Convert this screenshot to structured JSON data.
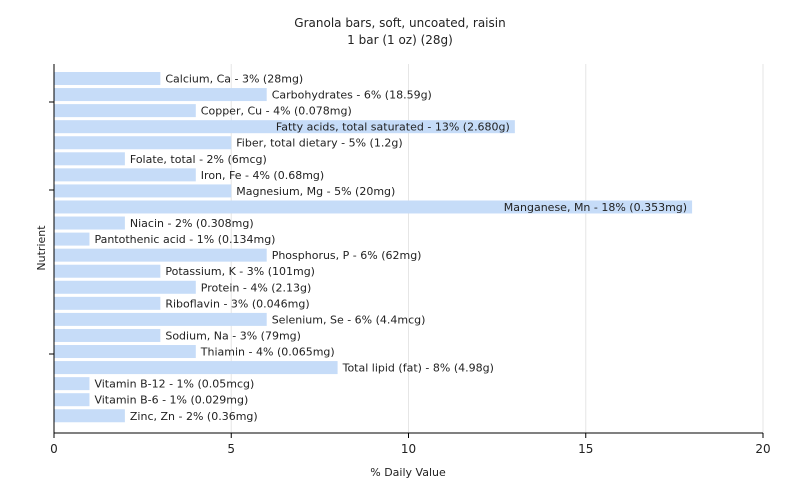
{
  "chart_data": {
    "type": "bar",
    "orientation": "horizontal",
    "title": "Granola bars, soft, uncoated, raisin",
    "subtitle": "1 bar (1 oz) (28g)",
    "xlabel": "% Daily Value",
    "ylabel": "Nutrient",
    "xlim": [
      0,
      20
    ],
    "xticks": [
      0,
      5,
      10,
      15,
      20
    ],
    "grid": true,
    "legend": "none",
    "bar_color": "#c6dcf8",
    "categories": [
      "Calcium, Ca",
      "Carbohydrates",
      "Copper, Cu",
      "Fatty acids, total saturated",
      "Fiber, total dietary",
      "Folate, total",
      "Iron, Fe",
      "Magnesium, Mg",
      "Manganese, Mn",
      "Niacin",
      "Pantothenic acid",
      "Phosphorus, P",
      "Potassium, K",
      "Protein",
      "Riboflavin",
      "Selenium, Se",
      "Sodium, Na",
      "Thiamin",
      "Total lipid (fat)",
      "Vitamin B-12",
      "Vitamin B-6",
      "Zinc, Zn"
    ],
    "values": [
      3,
      6,
      4,
      13,
      5,
      2,
      4,
      5,
      18,
      2,
      1,
      6,
      3,
      4,
      3,
      6,
      3,
      4,
      8,
      1,
      1,
      2
    ],
    "labels": [
      "Calcium, Ca - 3% (28mg)",
      "Carbohydrates - 6% (18.59g)",
      "Copper, Cu - 4% (0.078mg)",
      "Fatty acids, total saturated - 13% (2.680g)",
      "Fiber, total dietary - 5% (1.2g)",
      "Folate, total - 2% (6mcg)",
      "Iron, Fe - 4% (0.68mg)",
      "Magnesium, Mg - 5% (20mg)",
      "Manganese, Mn - 18% (0.353mg)",
      "Niacin - 2% (0.308mg)",
      "Pantothenic acid - 1% (0.134mg)",
      "Phosphorus, P - 6% (62mg)",
      "Potassium, K - 3% (101mg)",
      "Protein - 4% (2.13g)",
      "Riboflavin - 3% (0.046mg)",
      "Selenium, Se - 6% (4.4mcg)",
      "Sodium, Na - 3% (79mg)",
      "Thiamin - 4% (0.065mg)",
      "Total lipid (fat) - 8% (4.98g)",
      "Vitamin B-12 - 1% (0.05mcg)",
      "Vitamin B-6 - 1% (0.029mg)",
      "Zinc, Zn - 2% (0.36mg)"
    ]
  }
}
